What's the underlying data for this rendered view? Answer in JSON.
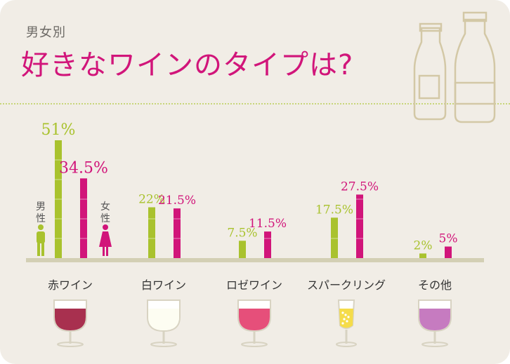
{
  "header": {
    "subtitle": "男女別",
    "title": "好きなワインのタイプは?"
  },
  "legend": {
    "male_label": "男\n性",
    "female_label": "女\n性"
  },
  "colors": {
    "male": "#a9c22e",
    "female": "#d1157a",
    "title": "#d1157a",
    "background": "#f1ede6",
    "baseline": "#d3cfb4"
  },
  "chart_data": {
    "type": "bar",
    "categories": [
      "赤ワイン",
      "白ワイン",
      "ロゼワイン",
      "スパークリング",
      "その他"
    ],
    "series": [
      {
        "name": "男性",
        "values": [
          51,
          22,
          7.5,
          17.5,
          2
        ],
        "labels": [
          "51%",
          "22%",
          "7.5%",
          "17.5%",
          "2%"
        ]
      },
      {
        "name": "女性",
        "values": [
          34.5,
          21.5,
          11.5,
          27.5,
          5
        ],
        "labels": [
          "34.5%",
          "21.5%",
          "11.5%",
          "27.5%",
          "5%"
        ]
      }
    ],
    "ylim": [
      0,
      51
    ],
    "glass_colors": [
      "#a8304f",
      "#fdfdf2",
      "#e64f7a",
      "#f5dc4a",
      "#c67bc0"
    ],
    "glass_types": [
      "wine-glass",
      "wine-glass",
      "wine-glass",
      "flute-glass",
      "wine-glass"
    ]
  }
}
